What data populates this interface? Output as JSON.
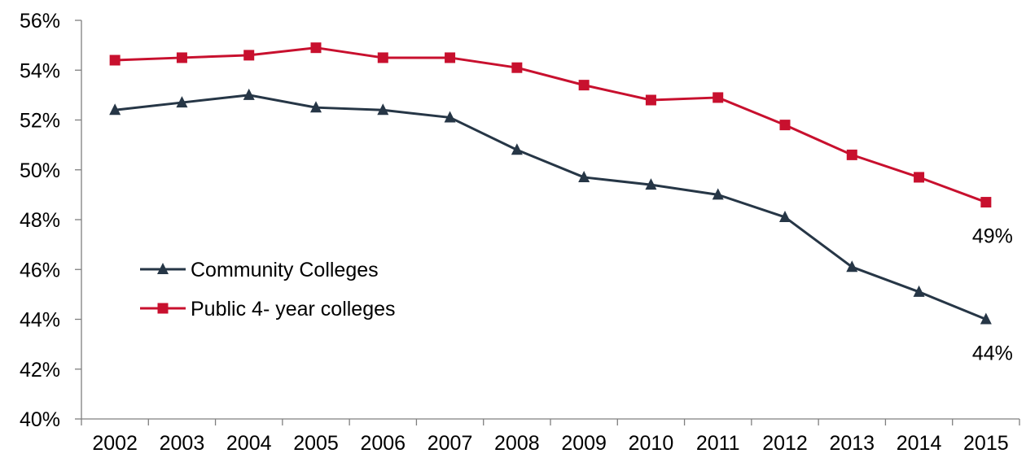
{
  "chart_data": {
    "type": "line",
    "title": "",
    "xlabel": "",
    "ylabel": "",
    "x": [
      "2002",
      "2003",
      "2004",
      "2005",
      "2006",
      "2007",
      "2008",
      "2009",
      "2010",
      "2011",
      "2012",
      "2013",
      "2014",
      "2015"
    ],
    "ylim": [
      40,
      56
    ],
    "y_ticks": [
      40,
      42,
      44,
      46,
      48,
      50,
      52,
      54,
      56
    ],
    "y_tick_suffix": "%",
    "grid": false,
    "legend_position": "left-center",
    "series": [
      {
        "name": "Community Colleges",
        "color": "#263646",
        "marker": "triangle",
        "values": [
          52.4,
          52.7,
          53.0,
          52.5,
          52.4,
          52.1,
          50.8,
          49.7,
          49.4,
          49.0,
          48.1,
          46.1,
          45.1,
          44.0
        ],
        "end_label": "44%"
      },
      {
        "name": "Public 4- year colleges",
        "color": "#C8102E",
        "marker": "square",
        "values": [
          54.4,
          54.5,
          54.6,
          54.9,
          54.5,
          54.5,
          54.1,
          53.4,
          52.8,
          52.9,
          51.8,
          50.6,
          49.7,
          48.7
        ],
        "end_label": "49%"
      }
    ]
  }
}
